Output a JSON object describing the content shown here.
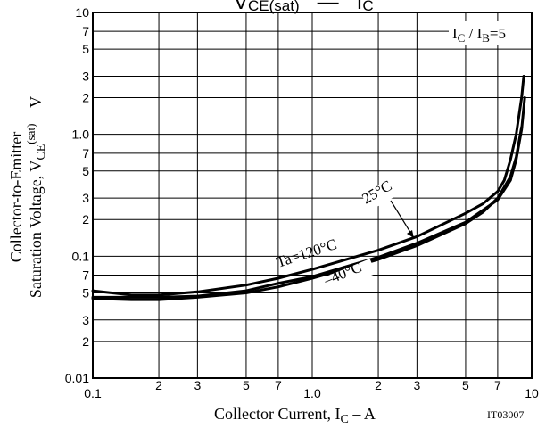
{
  "chart_data": {
    "type": "line",
    "title_main": "V",
    "title_main_sub": "CE(sat)",
    "title_sep": "—",
    "title_rhs": "I",
    "title_rhs_sub": "C",
    "condition": {
      "pre": "I",
      "sub1": "C",
      "mid": " / I",
      "sub2": "B",
      "post": "=5"
    },
    "xlabel": {
      "pre": "Collector Current, I",
      "sub": "C",
      "post": " – A"
    },
    "ylabel_line1": "Collector-to-Emitter",
    "ylabel_line2": {
      "pre": "Saturation Voltage, V",
      "sub": "CE",
      "sup": "(sat)",
      "post": " – V"
    },
    "figure_id": "IT03007",
    "x_scale": "log",
    "y_scale": "log",
    "xlim": [
      0.1,
      10
    ],
    "ylim": [
      0.01,
      10
    ],
    "x_tick_labels": [
      {
        "v": 0.1,
        "t": "0.1"
      },
      {
        "v": 0.2,
        "t": "2"
      },
      {
        "v": 0.3,
        "t": "3"
      },
      {
        "v": 0.5,
        "t": "5"
      },
      {
        "v": 0.7,
        "t": "7"
      },
      {
        "v": 1.0,
        "t": "1.0"
      },
      {
        "v": 2,
        "t": "2"
      },
      {
        "v": 3,
        "t": "3"
      },
      {
        "v": 5,
        "t": "5"
      },
      {
        "v": 7,
        "t": "7"
      },
      {
        "v": 10,
        "t": "10"
      }
    ],
    "y_tick_labels": [
      {
        "v": 0.01,
        "t": "0.01"
      },
      {
        "v": 0.02,
        "t": "2"
      },
      {
        "v": 0.03,
        "t": "3"
      },
      {
        "v": 0.05,
        "t": "5"
      },
      {
        "v": 0.07,
        "t": "7"
      },
      {
        "v": 0.1,
        "t": "0.1"
      },
      {
        "v": 0.2,
        "t": "2"
      },
      {
        "v": 0.3,
        "t": "3"
      },
      {
        "v": 0.5,
        "t": "5"
      },
      {
        "v": 0.7,
        "t": "7"
      },
      {
        "v": 1.0,
        "t": "1.0"
      },
      {
        "v": 2,
        "t": "2"
      },
      {
        "v": 3,
        "t": "3"
      },
      {
        "v": 5,
        "t": "5"
      },
      {
        "v": 7,
        "t": "7"
      },
      {
        "v": 10,
        "t": "10"
      }
    ],
    "x_grid": [
      0.2,
      0.3,
      0.5,
      0.7,
      1,
      2,
      3,
      5,
      7
    ],
    "y_grid": [
      0.02,
      0.03,
      0.05,
      0.07,
      0.1,
      0.2,
      0.3,
      0.5,
      0.7,
      1,
      2,
      3,
      5,
      7
    ],
    "series": [
      {
        "name": "Ta=120°C",
        "points": [
          [
            0.1,
            0.052
          ],
          [
            0.15,
            0.048
          ],
          [
            0.2,
            0.048
          ],
          [
            0.3,
            0.051
          ],
          [
            0.5,
            0.058
          ],
          [
            0.7,
            0.066
          ],
          [
            1.0,
            0.078
          ],
          [
            2,
            0.112
          ],
          [
            3,
            0.145
          ],
          [
            5,
            0.225
          ],
          [
            6,
            0.27
          ],
          [
            7,
            0.34
          ],
          [
            7.5,
            0.42
          ],
          [
            8,
            0.62
          ],
          [
            8.5,
            1.0
          ],
          [
            9,
            2.0
          ],
          [
            9.2,
            3.0
          ]
        ]
      },
      {
        "name": "25°C",
        "points": [
          [
            0.1,
            0.046
          ],
          [
            0.15,
            0.046
          ],
          [
            0.2,
            0.046
          ],
          [
            0.3,
            0.047
          ],
          [
            0.5,
            0.052
          ],
          [
            0.7,
            0.06
          ],
          [
            1.0,
            0.068
          ],
          [
            2,
            0.098
          ],
          [
            3,
            0.128
          ],
          [
            5,
            0.19
          ],
          [
            7,
            0.29
          ],
          [
            8,
            0.42
          ],
          [
            8.5,
            0.62
          ],
          [
            9,
            1.1
          ],
          [
            9.3,
            2.0
          ]
        ]
      },
      {
        "name": "–40°C",
        "points": [
          [
            0.1,
            0.045
          ],
          [
            0.15,
            0.044
          ],
          [
            0.2,
            0.044
          ],
          [
            0.3,
            0.046
          ],
          [
            0.5,
            0.05
          ],
          [
            0.7,
            0.056
          ],
          [
            1.0,
            0.066
          ],
          [
            2,
            0.094
          ],
          [
            3,
            0.122
          ],
          [
            5,
            0.185
          ],
          [
            6,
            0.23
          ],
          [
            7,
            0.3
          ],
          [
            8,
            0.45
          ],
          [
            8.5,
            0.65
          ],
          [
            9,
            1.15
          ]
        ]
      }
    ]
  }
}
